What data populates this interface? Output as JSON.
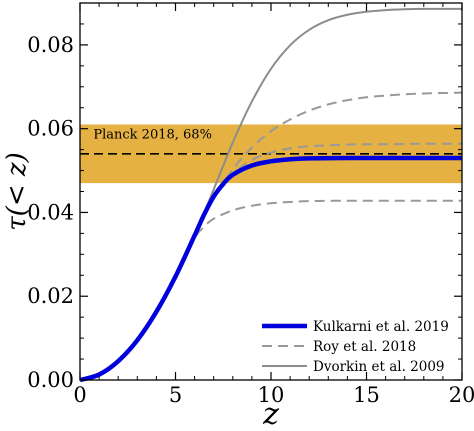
{
  "chart_data": {
    "type": "line",
    "xlabel": "z",
    "ylabel": "τ(< z)",
    "xlim": [
      0,
      20
    ],
    "ylim": [
      0,
      0.09
    ],
    "x_ticks": [
      0,
      5,
      10,
      15,
      20
    ],
    "x_tick_labels": [
      "0",
      "5",
      "10",
      "15",
      "20"
    ],
    "y_ticks": [
      0,
      0.02,
      0.04,
      0.06,
      0.08
    ],
    "y_tick_labels": [
      "0.00",
      "0.02",
      "0.04",
      "0.06",
      "0.08"
    ],
    "grid": false,
    "legend_position": "bottom-right",
    "band": {
      "label": "Planck 2018, 68%",
      "center": 0.054,
      "low": 0.047,
      "high": 0.061,
      "color": "#E5B143"
    },
    "series": [
      {
        "name": "Kulkarni et al. 2019",
        "style": "solid",
        "color": "#0000DD",
        "width": 4.5,
        "legend": true,
        "x": [
          0,
          1,
          2,
          3,
          4,
          5,
          6,
          6.5,
          7,
          7.5,
          8,
          9,
          10,
          11,
          12,
          14,
          16,
          18,
          20
        ],
        "y": [
          0,
          0.0013,
          0.0045,
          0.0095,
          0.0163,
          0.0247,
          0.0345,
          0.0395,
          0.0438,
          0.0468,
          0.049,
          0.0512,
          0.0522,
          0.0527,
          0.0529,
          0.053,
          0.053,
          0.053,
          0.053
        ]
      },
      {
        "name": "Roy et al. 2018",
        "style": "dashed",
        "color": "#999999",
        "width": 2,
        "legend": true,
        "x": [
          0,
          1,
          2,
          3,
          4,
          5,
          6,
          7,
          8,
          9,
          10,
          11,
          12,
          13,
          14,
          15,
          16,
          17,
          18,
          19,
          20
        ],
        "y": [
          0,
          0.0013,
          0.0045,
          0.0095,
          0.0163,
          0.0247,
          0.0345,
          0.0433,
          0.0503,
          0.0555,
          0.0594,
          0.0622,
          0.0643,
          0.0658,
          0.0668,
          0.0675,
          0.0679,
          0.0682,
          0.0684,
          0.0685,
          0.0686
        ]
      },
      {
        "name": "",
        "style": "dashed",
        "color": "#999999",
        "width": 2,
        "legend": false,
        "x": [
          0,
          1,
          2,
          3,
          4,
          5,
          6,
          7,
          8,
          9,
          10,
          11,
          12,
          14,
          16,
          18,
          20
        ],
        "y": [
          0,
          0.0013,
          0.0045,
          0.0095,
          0.0163,
          0.0247,
          0.0345,
          0.0436,
          0.0492,
          0.0525,
          0.0543,
          0.0553,
          0.0558,
          0.0562,
          0.0563,
          0.0564,
          0.0564
        ]
      },
      {
        "name": "",
        "style": "dashed",
        "color": "#999999",
        "width": 2,
        "legend": false,
        "x": [
          0,
          1,
          2,
          3,
          4,
          5,
          6,
          6.5,
          7,
          8,
          9,
          10,
          11,
          12,
          14,
          16,
          18,
          20
        ],
        "y": [
          0,
          0.0013,
          0.0045,
          0.0095,
          0.0163,
          0.0247,
          0.0338,
          0.0366,
          0.0385,
          0.0405,
          0.0416,
          0.0422,
          0.0425,
          0.0427,
          0.0428,
          0.0428,
          0.0428,
          0.0428
        ]
      },
      {
        "name": "Dvorkin et al. 2009",
        "style": "solid",
        "color": "#8C8C8C",
        "width": 2,
        "legend": true,
        "x": [
          0,
          1,
          2,
          3,
          4,
          5,
          6,
          7,
          8,
          9,
          10,
          11,
          12,
          13,
          14,
          15,
          16,
          17,
          18,
          19,
          20
        ],
        "y": [
          0,
          0.0013,
          0.0045,
          0.0095,
          0.0163,
          0.0247,
          0.0345,
          0.0455,
          0.0567,
          0.0665,
          0.0743,
          0.0799,
          0.0836,
          0.0859,
          0.0872,
          0.0879,
          0.0883,
          0.0885,
          0.0886,
          0.0886,
          0.0886
        ]
      }
    ]
  }
}
